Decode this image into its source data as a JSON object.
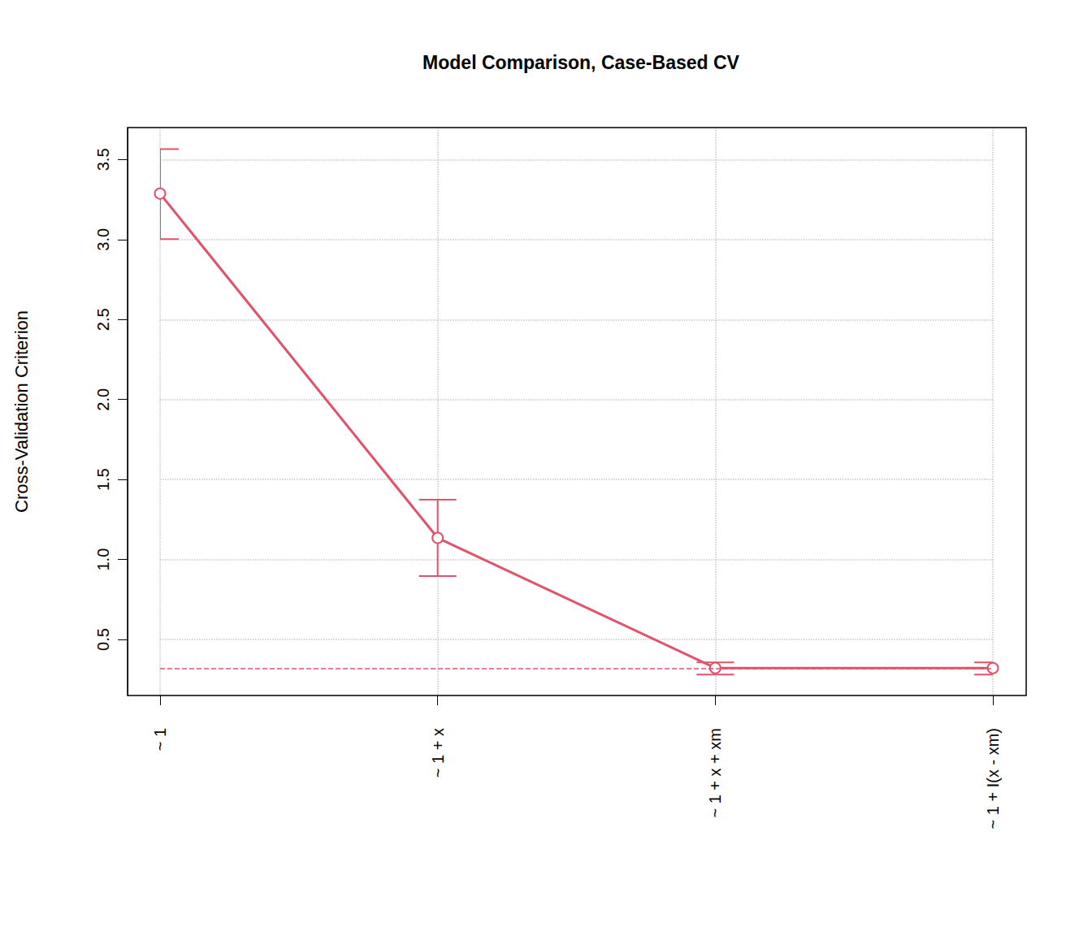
{
  "chart_data": {
    "type": "line",
    "title": "Model Comparison, Case-Based CV",
    "y_label": "Cross-Validation Criterion",
    "categories": [
      "~ 1",
      "~ 1 + x",
      "~ 1 + x + xm",
      "~ 1 + I(x - xm)"
    ],
    "values": [
      3.287,
      1.135,
      0.322,
      0.321
    ],
    "error_low": [
      3.003,
      0.896,
      0.281,
      0.281
    ],
    "error_high": [
      3.566,
      1.374,
      0.357,
      0.357
    ],
    "hline": 0.318,
    "ylim": [
      0.15,
      3.7
    ],
    "yticks": [
      0.5,
      {
        "value": 1,
        "label": "1.0"
      },
      1.5,
      {
        "value": 2,
        "label": "2.0"
      },
      2.5,
      {
        "value": 3,
        "label": "3.0"
      },
      3.5
    ],
    "grid": true,
    "color": "#DF536B",
    "marker": "circle",
    "line_style": "solid"
  }
}
